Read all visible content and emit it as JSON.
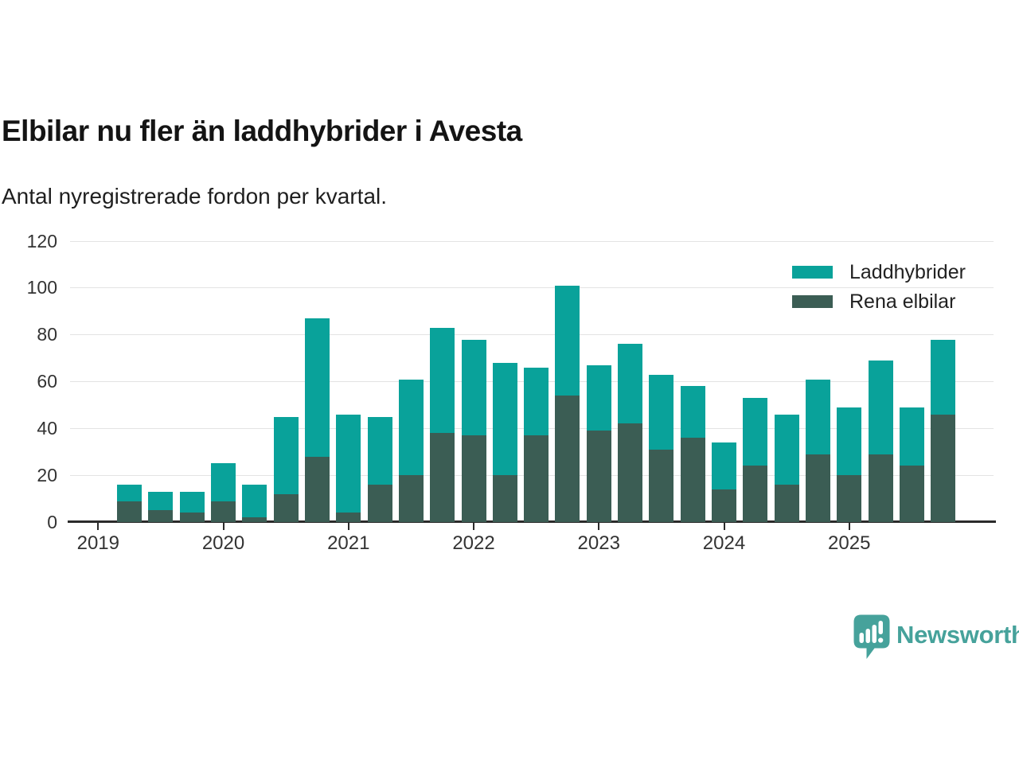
{
  "title": "Elbilar nu fler än laddhybrider i Avesta",
  "subtitle": "Antal nyregistrerade fordon per kvartal.",
  "colors": {
    "laddhybrider": "#09a29a",
    "rena_elbilar": "#3b5d54",
    "brand": "#46a29b",
    "grid": "#e3e3e3",
    "axis": "#2b2b2b",
    "tick_text": "#333333"
  },
  "legend": [
    {
      "label": "Laddhybrider",
      "color_key": "laddhybrider"
    },
    {
      "label": "Rena elbilar",
      "color_key": "rena_elbilar"
    }
  ],
  "brand": {
    "name": "Newsworthy"
  },
  "chart_data": {
    "type": "bar",
    "stacked": true,
    "title": "Elbilar nu fler än laddhybrider i Avesta",
    "subtitle": "Antal nyregistrerade fordon per kvartal.",
    "x": [
      "2019Q2",
      "2019Q3",
      "2019Q4",
      "2020Q1",
      "2020Q2",
      "2020Q3",
      "2020Q4",
      "2021Q1",
      "2021Q2",
      "2021Q3",
      "2021Q4",
      "2022Q1",
      "2022Q2",
      "2022Q3",
      "2022Q4",
      "2023Q1",
      "2023Q2",
      "2023Q3",
      "2023Q4",
      "2024Q1",
      "2024Q2",
      "2024Q3",
      "2024Q4",
      "2025Q1",
      "2025Q2",
      "2025Q3",
      "2025Q4"
    ],
    "series": [
      {
        "name": "Rena elbilar",
        "stack_position": "bottom",
        "values": [
          9,
          5,
          4,
          9,
          2,
          12,
          28,
          4,
          16,
          20,
          38,
          37,
          20,
          37,
          54,
          39,
          42,
          31,
          36,
          14,
          24,
          16,
          29,
          20,
          29,
          24,
          46
        ]
      },
      {
        "name": "Laddhybrider",
        "stack_position": "top",
        "values": [
          7,
          8,
          9,
          16,
          14,
          33,
          59,
          42,
          29,
          41,
          45,
          41,
          48,
          29,
          47,
          28,
          34,
          32,
          22,
          20,
          29,
          30,
          32,
          29,
          40,
          25,
          32
        ]
      }
    ],
    "totals": [
      16,
      13,
      13,
      25,
      16,
      45,
      87,
      46,
      45,
      61,
      83,
      78,
      68,
      66,
      101,
      67,
      76,
      63,
      58,
      34,
      53,
      46,
      61,
      49,
      69,
      49,
      78
    ],
    "xticks": [
      "2019",
      "2020",
      "2021",
      "2022",
      "2023",
      "2024",
      "2025"
    ],
    "xtick_quarter_index": [
      0,
      4,
      8,
      12,
      16,
      20,
      24
    ],
    "first_bar_quarter_index": 1,
    "yticks": [
      0,
      20,
      40,
      60,
      80,
      100,
      120
    ],
    "ylim": [
      0,
      120
    ],
    "grid": "horizontal",
    "legend_position": "top-right"
  }
}
